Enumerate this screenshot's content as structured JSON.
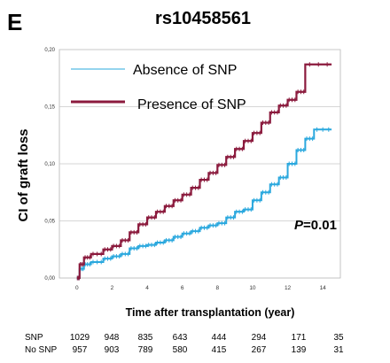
{
  "panel_letter": "E",
  "chart_data": {
    "type": "line",
    "title": "rs10458561",
    "xlabel": "Time after transplantation (year)",
    "ylabel": "CI of graft loss",
    "xlim": [
      -1,
      15
    ],
    "ylim": [
      0,
      0.2
    ],
    "x_ticks": [
      0,
      2,
      4,
      6,
      8,
      10,
      12,
      14
    ],
    "y_ticks": [
      0.0,
      0.05,
      0.1,
      0.15,
      0.2
    ],
    "y_tick_labels": [
      "0,00",
      "0,05",
      "0,10",
      "0,15",
      "0,20"
    ],
    "grid": "horizontal",
    "legend_position": "top-left",
    "annotation": {
      "prefix": "P",
      "text": "=0.01"
    },
    "series": [
      {
        "name": "Absence of SNP",
        "color": "#2aa8de",
        "points": [
          [
            0,
            0
          ],
          [
            0.15,
            0.008
          ],
          [
            0.4,
            0.012
          ],
          [
            0.8,
            0.014
          ],
          [
            1.5,
            0.017
          ],
          [
            2,
            0.019
          ],
          [
            2.5,
            0.021
          ],
          [
            3,
            0.026
          ],
          [
            3.5,
            0.028
          ],
          [
            4,
            0.029
          ],
          [
            4.5,
            0.031
          ],
          [
            5,
            0.033
          ],
          [
            5.5,
            0.036
          ],
          [
            6,
            0.039
          ],
          [
            6.5,
            0.041
          ],
          [
            7,
            0.044
          ],
          [
            7.5,
            0.046
          ],
          [
            8,
            0.048
          ],
          [
            8.5,
            0.053
          ],
          [
            9,
            0.058
          ],
          [
            9.5,
            0.06
          ],
          [
            10,
            0.068
          ],
          [
            10.5,
            0.075
          ],
          [
            11,
            0.082
          ],
          [
            11.5,
            0.088
          ],
          [
            12,
            0.1
          ],
          [
            12.5,
            0.112
          ],
          [
            13,
            0.122
          ],
          [
            13.5,
            0.13
          ],
          [
            14.5,
            0.13
          ]
        ]
      },
      {
        "name": "Presence of SNP",
        "color": "#8b1a3d",
        "points": [
          [
            0,
            0
          ],
          [
            0.15,
            0.012
          ],
          [
            0.4,
            0.018
          ],
          [
            0.8,
            0.021
          ],
          [
            1.5,
            0.025
          ],
          [
            2,
            0.028
          ],
          [
            2.5,
            0.033
          ],
          [
            3,
            0.04
          ],
          [
            3.5,
            0.047
          ],
          [
            4,
            0.053
          ],
          [
            4.5,
            0.058
          ],
          [
            5,
            0.063
          ],
          [
            5.5,
            0.068
          ],
          [
            6,
            0.073
          ],
          [
            6.5,
            0.079
          ],
          [
            7,
            0.086
          ],
          [
            7.5,
            0.092
          ],
          [
            8,
            0.099
          ],
          [
            8.5,
            0.106
          ],
          [
            9,
            0.113
          ],
          [
            9.5,
            0.12
          ],
          [
            10,
            0.127
          ],
          [
            10.5,
            0.136
          ],
          [
            11,
            0.145
          ],
          [
            11.5,
            0.151
          ],
          [
            12,
            0.156
          ],
          [
            12.5,
            0.163
          ],
          [
            13,
            0.187
          ],
          [
            14.5,
            0.187
          ]
        ]
      }
    ]
  },
  "risk_table": {
    "time_points": [
      0,
      2,
      4,
      6,
      8,
      10,
      12,
      14
    ],
    "rows": [
      {
        "label": "SNP",
        "values": [
          "1029",
          "948",
          "835",
          "643",
          "444",
          "294",
          "171",
          "35"
        ]
      },
      {
        "label": "No SNP",
        "values": [
          "957",
          "903",
          "789",
          "580",
          "415",
          "267",
          "139",
          "31"
        ]
      }
    ]
  }
}
